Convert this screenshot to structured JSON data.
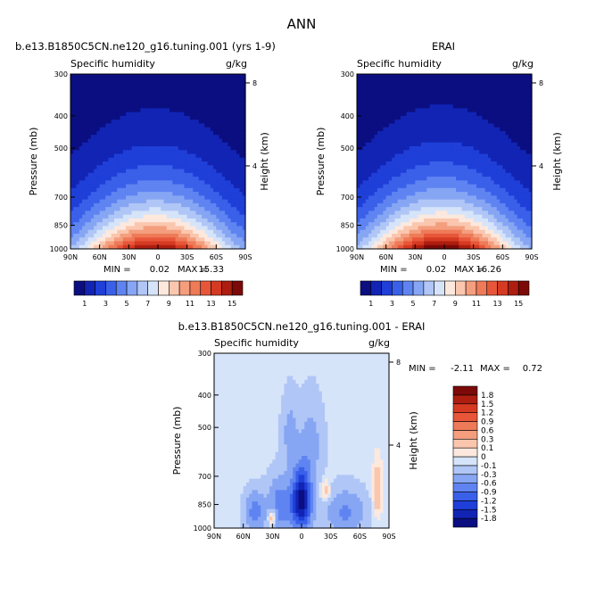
{
  "figure": {
    "main_title": "ANN",
    "field_name": "Specific humidity",
    "units": "g/kg",
    "y_label": "Pressure (mb)",
    "y2_label": "Height (km)"
  },
  "chart_data": [
    {
      "type": "heatmap",
      "title": "b.e13.B1850C5CN.ne120_g16.tuning.001 (yrs 1-9)",
      "subtitle_left": "Specific humidity",
      "subtitle_right": "g/kg",
      "xlabel": "",
      "ylabel": "Pressure (mb)",
      "y2label": "Height (km)",
      "x_ticks": [
        "90N",
        "60N",
        "30N",
        "0",
        "30S",
        "60S",
        "90S"
      ],
      "x_tick_values": [
        90,
        60,
        30,
        0,
        -30,
        -60,
        -90
      ],
      "y_ticks": [
        300,
        400,
        500,
        700,
        850,
        1000
      ],
      "y_scale": "log",
      "y_range": [
        300,
        1000
      ],
      "y2_ticks": [
        8,
        4
      ],
      "xlim": [
        90,
        -90
      ],
      "stats": {
        "min_label": "MIN =",
        "min": "0.02",
        "max_label": "MAX =",
        "max": "15.33"
      },
      "levels": [
        1,
        2,
        3,
        4,
        5,
        6,
        7,
        8,
        9,
        10,
        11,
        12,
        13,
        14,
        15
      ],
      "colorbar_labels": [
        "1",
        "3",
        "5",
        "7",
        "9",
        "11",
        "13",
        "15"
      ],
      "colors": [
        "#0a0e80",
        "#1224b4",
        "#1f3fd8",
        "#3a60ea",
        "#5f84f2",
        "#86a6f4",
        "#b0c6f6",
        "#d6e4fa",
        "#fde8dd",
        "#fac6ae",
        "#f49e7e",
        "#ee7a58",
        "#e8563a",
        "#d53a22",
        "#ad1e10",
        "#7c0a08"
      ],
      "field": {
        "surface_peak": 15.33,
        "peak_lat": 3,
        "surface_min": 0.02
      }
    },
    {
      "type": "heatmap",
      "title": "ERAI",
      "subtitle_left": "Specific humidity",
      "subtitle_right": "g/kg",
      "xlabel": "",
      "ylabel": "Pressure (mb)",
      "y2label": "Height (km)",
      "x_ticks": [
        "90N",
        "60N",
        "30N",
        "0",
        "30S",
        "60S",
        "90S"
      ],
      "x_tick_values": [
        90,
        60,
        30,
        0,
        -30,
        -60,
        -90
      ],
      "y_ticks": [
        300,
        400,
        500,
        700,
        850,
        1000
      ],
      "y_scale": "log",
      "y_range": [
        300,
        1000
      ],
      "y2_ticks": [
        8,
        4
      ],
      "xlim": [
        90,
        -90
      ],
      "stats": {
        "min_label": "MIN =",
        "min": "0.02",
        "max_label": "MAX =",
        "max": "16.26"
      },
      "levels": [
        1,
        2,
        3,
        4,
        5,
        6,
        7,
        8,
        9,
        10,
        11,
        12,
        13,
        14,
        15
      ],
      "colorbar_labels": [
        "1",
        "3",
        "5",
        "7",
        "9",
        "11",
        "13",
        "15"
      ],
      "colors": [
        "#0a0e80",
        "#1224b4",
        "#1f3fd8",
        "#3a60ea",
        "#5f84f2",
        "#86a6f4",
        "#b0c6f6",
        "#d6e4fa",
        "#fde8dd",
        "#fac6ae",
        "#f49e7e",
        "#ee7a58",
        "#e8563a",
        "#d53a22",
        "#ad1e10",
        "#7c0a08"
      ],
      "field": {
        "surface_peak": 16.26,
        "peak_lat": 3,
        "surface_min": 0.02
      }
    },
    {
      "type": "heatmap",
      "title": "b.e13.B1850C5CN.ne120_g16.tuning.001 - ERAI",
      "subtitle_left": "Specific humidity",
      "subtitle_right": "g/kg",
      "xlabel": "",
      "ylabel": "Pressure (mb)",
      "y2label": "Height (km)",
      "x_ticks": [
        "90N",
        "60N",
        "30N",
        "0",
        "30S",
        "60S",
        "90S"
      ],
      "x_tick_values": [
        90,
        60,
        30,
        0,
        -30,
        -60,
        -90
      ],
      "y_ticks": [
        300,
        400,
        500,
        700,
        850,
        1000
      ],
      "y_scale": "log",
      "y_range": [
        300,
        1000
      ],
      "y2_ticks": [
        8,
        4
      ],
      "xlim": [
        90,
        -90
      ],
      "stats": {
        "min_label": "MIN =",
        "min": "-2.11",
        "max_label": "MAX =",
        "max": "0.72"
      },
      "levels": [
        -1.8,
        -1.5,
        -1.2,
        -0.9,
        -0.6,
        -0.3,
        -0.1,
        0,
        0.1,
        0.3,
        0.6,
        0.9,
        1.2,
        1.5,
        1.8
      ],
      "colorbar_labels": [
        "-1.8",
        "-1.5",
        "-1.2",
        "-0.9",
        "-0.6",
        "-0.3",
        "-0.1",
        "0",
        "0.1",
        "0.3",
        "0.6",
        "0.9",
        "1.2",
        "1.5",
        "1.8"
      ],
      "colors": [
        "#0a0e80",
        "#1224b4",
        "#1f3fd8",
        "#3a60ea",
        "#5f84f2",
        "#86a6f4",
        "#b0c6f6",
        "#d6e4fa",
        "#fde8dd",
        "#fac6ae",
        "#f49e7e",
        "#ee7a58",
        "#e8563a",
        "#d53a22",
        "#ad1e10",
        "#7c0a08"
      ]
    }
  ]
}
